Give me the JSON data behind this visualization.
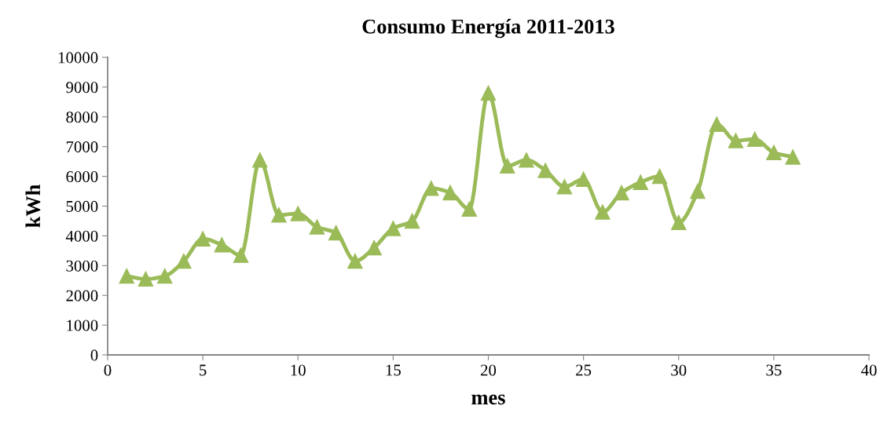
{
  "chart_data": {
    "type": "line",
    "title": "Consumo Energía 2011-2013",
    "xlabel": "mes",
    "ylabel": "kWh",
    "x": [
      1,
      2,
      3,
      4,
      5,
      6,
      7,
      8,
      9,
      10,
      11,
      12,
      13,
      14,
      15,
      16,
      17,
      18,
      19,
      20,
      21,
      22,
      23,
      24,
      25,
      26,
      27,
      28,
      29,
      30,
      31,
      32,
      33,
      34,
      35,
      36
    ],
    "series": [
      {
        "color": "#9bbb59",
        "values": [
          2650,
          2550,
          2650,
          3150,
          3900,
          3700,
          3350,
          6550,
          4700,
          4750,
          4300,
          4100,
          3150,
          3600,
          4250,
          4500,
          5600,
          5450,
          4900,
          8800,
          6350,
          6550,
          6200,
          5650,
          5900,
          4800,
          5450,
          5800,
          6000,
          4450,
          5500,
          7750,
          7200,
          7250,
          6800,
          6650
        ]
      }
    ],
    "xlim": [
      0,
      40
    ],
    "xticks": [
      0,
      5,
      10,
      15,
      20,
      25,
      30,
      35,
      40
    ],
    "ylim": [
      0,
      10000
    ],
    "yticks": [
      0,
      1000,
      2000,
      3000,
      4000,
      5000,
      6000,
      7000,
      8000,
      9000,
      10000
    ],
    "grid": false,
    "marker": "triangle",
    "line_style": "solid"
  }
}
